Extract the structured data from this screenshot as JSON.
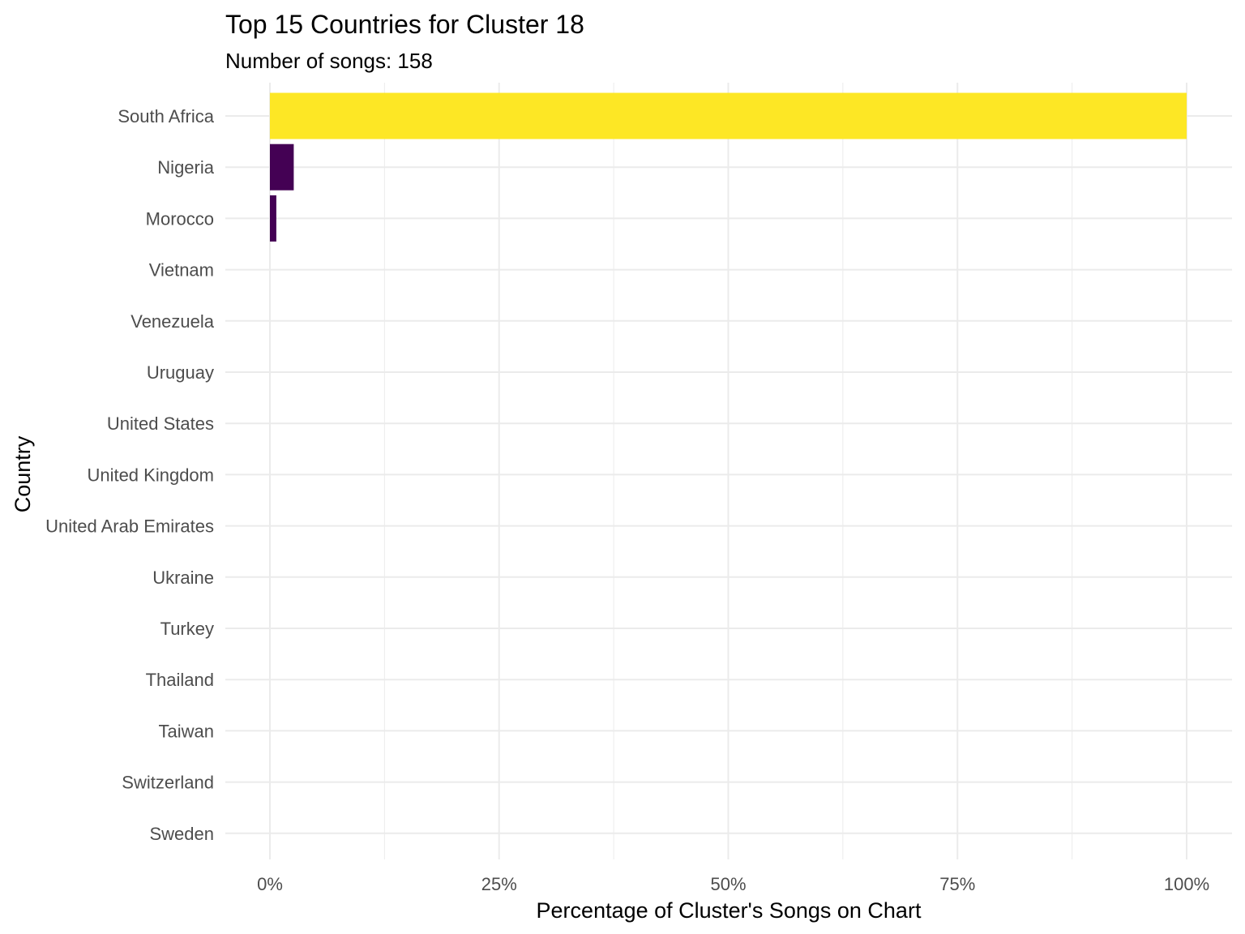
{
  "chart_data": {
    "type": "bar",
    "orientation": "horizontal",
    "title": "Top 15 Countries for Cluster 18",
    "subtitle": "Number of songs: 158",
    "xlabel": "Percentage of Cluster's Songs on Chart",
    "ylabel": "Country",
    "xlim": [
      0,
      100
    ],
    "x_ticks": [
      0,
      25,
      50,
      75,
      100
    ],
    "x_tick_labels": [
      "0%",
      "25%",
      "50%",
      "75%",
      "100%"
    ],
    "grid": true,
    "legend": "none",
    "categories": [
      "South Africa",
      "Nigeria",
      "Morocco",
      "Vietnam",
      "Venezuela",
      "Uruguay",
      "United States",
      "United Kingdom",
      "United Arab Emirates",
      "Ukraine",
      "Turkey",
      "Thailand",
      "Taiwan",
      "Switzerland",
      "Sweden"
    ],
    "values": [
      100,
      2.6,
      0.7,
      0,
      0,
      0,
      0,
      0,
      0,
      0,
      0,
      0,
      0,
      0,
      0
    ],
    "colors": [
      "#fde725",
      "#440154",
      "#440154",
      "#440154",
      "#440154",
      "#440154",
      "#440154",
      "#440154",
      "#440154",
      "#440154",
      "#440154",
      "#440154",
      "#440154",
      "#440154",
      "#440154"
    ]
  }
}
